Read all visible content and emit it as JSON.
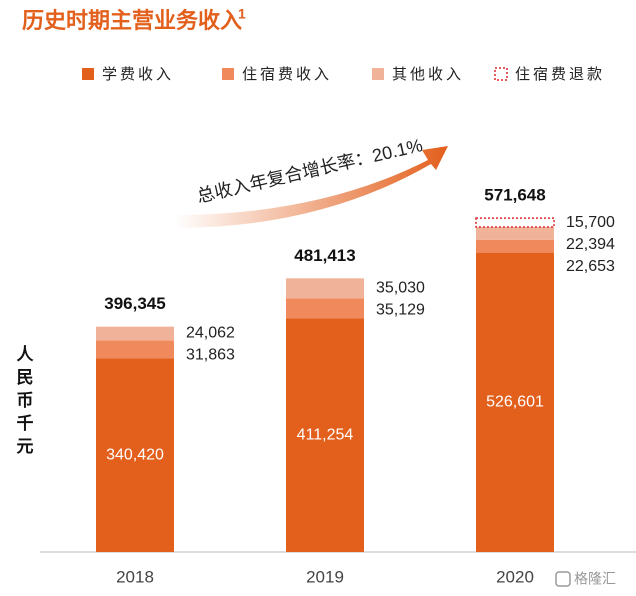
{
  "chart_data": {
    "type": "stacked_bar",
    "title": "历史时期主营业务收入",
    "title_superscript": "1",
    "y_label": "人民币千元",
    "annotation": "总收入年复合增长率：20.1%",
    "watermark": "格隆汇",
    "categories": [
      "2018",
      "2019",
      "2020"
    ],
    "series": [
      {
        "name": "学费收入",
        "color": "#e35f1c",
        "values": [
          340420,
          411254,
          526601
        ],
        "value_labels": [
          "340,420",
          "411,254",
          "526,601"
        ]
      },
      {
        "name": "住宿费收入",
        "color": "#f08a5d",
        "values": [
          31863,
          35129,
          22653
        ],
        "value_labels": [
          "31,863",
          "35,129",
          "22,653"
        ]
      },
      {
        "name": "其他收入",
        "color": "#f0b39a",
        "values": [
          24062,
          35030,
          22394
        ],
        "value_labels": [
          "24,062",
          "35,030",
          "22,394"
        ]
      },
      {
        "name": "住宿费退款",
        "color": "#d9272e",
        "style": "dashed",
        "values": [
          null,
          null,
          15700
        ],
        "value_labels": [
          null,
          null,
          "15,700"
        ]
      }
    ],
    "totals": {
      "values": [
        396345,
        481413,
        571648
      ],
      "value_labels": [
        "396,345",
        "481,413",
        "571,648"
      ]
    }
  }
}
